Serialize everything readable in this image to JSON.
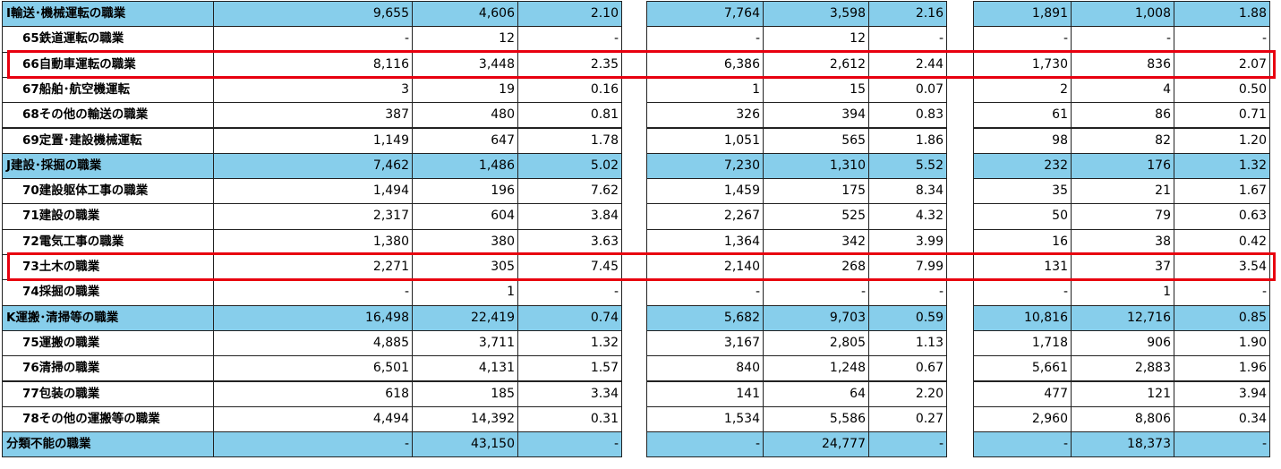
{
  "table": {
    "rows": [
      {
        "label": "I輸送･機械運転の職業",
        "cells": [
          "9,655",
          "4,606",
          "2.10",
          "7,764",
          "3,598",
          "2.16",
          "1,891",
          "1,008",
          "1.88"
        ]
      },
      {
        "label": "65鉄道運転の職業",
        "cells": [
          "-",
          "12",
          "-",
          "-",
          "12",
          "-",
          "-",
          "-",
          "-"
        ]
      },
      {
        "label": "66自動車運転の職業",
        "cells": [
          "8,116",
          "3,448",
          "2.35",
          "6,386",
          "2,612",
          "2.44",
          "1,730",
          "836",
          "2.07"
        ]
      },
      {
        "label": "67船舶･航空機運転",
        "cells": [
          "3",
          "19",
          "0.16",
          "1",
          "15",
          "0.07",
          "2",
          "4",
          "0.50"
        ]
      },
      {
        "label": "68その他の輸送の職業",
        "cells": [
          "387",
          "480",
          "0.81",
          "326",
          "394",
          "0.83",
          "61",
          "86",
          "0.71"
        ]
      },
      {
        "label": "69定置･建設機械運転",
        "cells": [
          "1,149",
          "647",
          "1.78",
          "1,051",
          "565",
          "1.86",
          "98",
          "82",
          "1.20"
        ]
      },
      {
        "label": "J建設･採掘の職業",
        "cells": [
          "7,462",
          "1,486",
          "5.02",
          "7,230",
          "1,310",
          "5.52",
          "232",
          "176",
          "1.32"
        ]
      },
      {
        "label": "70建設躯体工事の職業",
        "cells": [
          "1,494",
          "196",
          "7.62",
          "1,459",
          "175",
          "8.34",
          "35",
          "21",
          "1.67"
        ]
      },
      {
        "label": "71建設の職業",
        "cells": [
          "2,317",
          "604",
          "3.84",
          "2,267",
          "525",
          "4.32",
          "50",
          "79",
          "0.63"
        ]
      },
      {
        "label": "72電気工事の職業",
        "cells": [
          "1,380",
          "380",
          "3.63",
          "1,364",
          "342",
          "3.99",
          "16",
          "38",
          "0.42"
        ]
      },
      {
        "label": "73土木の職業",
        "cells": [
          "2,271",
          "305",
          "7.45",
          "2,140",
          "268",
          "7.99",
          "131",
          "37",
          "3.54"
        ]
      },
      {
        "label": "74採掘の職業",
        "cells": [
          "-",
          "1",
          "-",
          "-",
          "-",
          "-",
          "-",
          "1",
          "-"
        ]
      },
      {
        "label": "K運搬･清掃等の職業",
        "cells": [
          "16,498",
          "22,419",
          "0.74",
          "5,682",
          "9,703",
          "0.59",
          "10,816",
          "12,716",
          "0.85"
        ]
      },
      {
        "label": "75運搬の職業",
        "cells": [
          "4,885",
          "3,711",
          "1.32",
          "3,167",
          "2,805",
          "1.13",
          "1,718",
          "906",
          "1.90"
        ]
      },
      {
        "label": "76清掃の職業",
        "cells": [
          "6,501",
          "4,131",
          "1.57",
          "840",
          "1,248",
          "0.67",
          "5,661",
          "2,883",
          "1.96"
        ]
      },
      {
        "label": "77包装の職業",
        "cells": [
          "618",
          "185",
          "3.34",
          "141",
          "64",
          "2.20",
          "477",
          "121",
          "3.94"
        ]
      },
      {
        "label": "78その他の運搬等の職業",
        "cells": [
          "4,494",
          "14,392",
          "0.31",
          "1,534",
          "5,586",
          "0.27",
          "2,960",
          "8,806",
          "0.34"
        ]
      },
      {
        "label": "分類不能の職業",
        "cells": [
          "-",
          "43,150",
          "-",
          "-",
          "24,777",
          "-",
          "-",
          "18,373",
          "-"
        ]
      }
    ]
  }
}
